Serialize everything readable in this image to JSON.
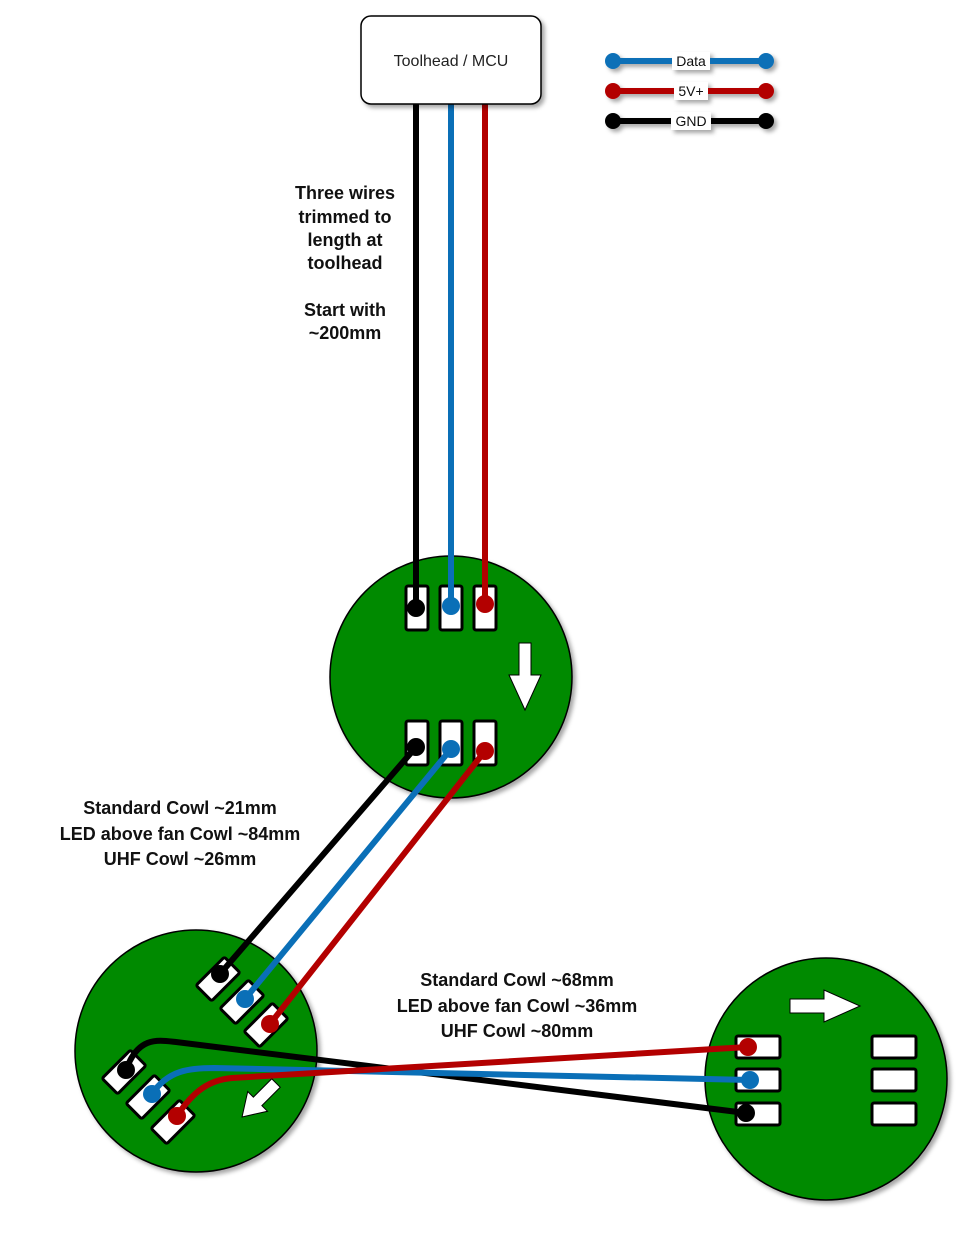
{
  "mcu": {
    "label": "Toolhead / MCU"
  },
  "legend": [
    {
      "label": "Data",
      "color": "#0a6fb7"
    },
    {
      "label": "5V+",
      "color": "#b30000"
    },
    {
      "label": "GND",
      "color": "#000000"
    }
  ],
  "colors": {
    "board": "#008a00",
    "pad": "#ffffff",
    "data": "#0a6fb7",
    "power": "#b30000",
    "ground": "#000000"
  },
  "notes": {
    "top_wires": [
      "Three wires",
      "trimmed to",
      "length at",
      "toolhead",
      "",
      "Start with",
      "~200mm"
    ],
    "middle_wires": [
      "Standard Cowl ~21mm",
      "LED above fan Cowl ~84mm",
      "UHF Cowl ~26mm"
    ],
    "bottom_wires": [
      "Standard Cowl ~68mm",
      "LED above fan Cowl ~36mm",
      "UHF Cowl ~80mm"
    ]
  }
}
